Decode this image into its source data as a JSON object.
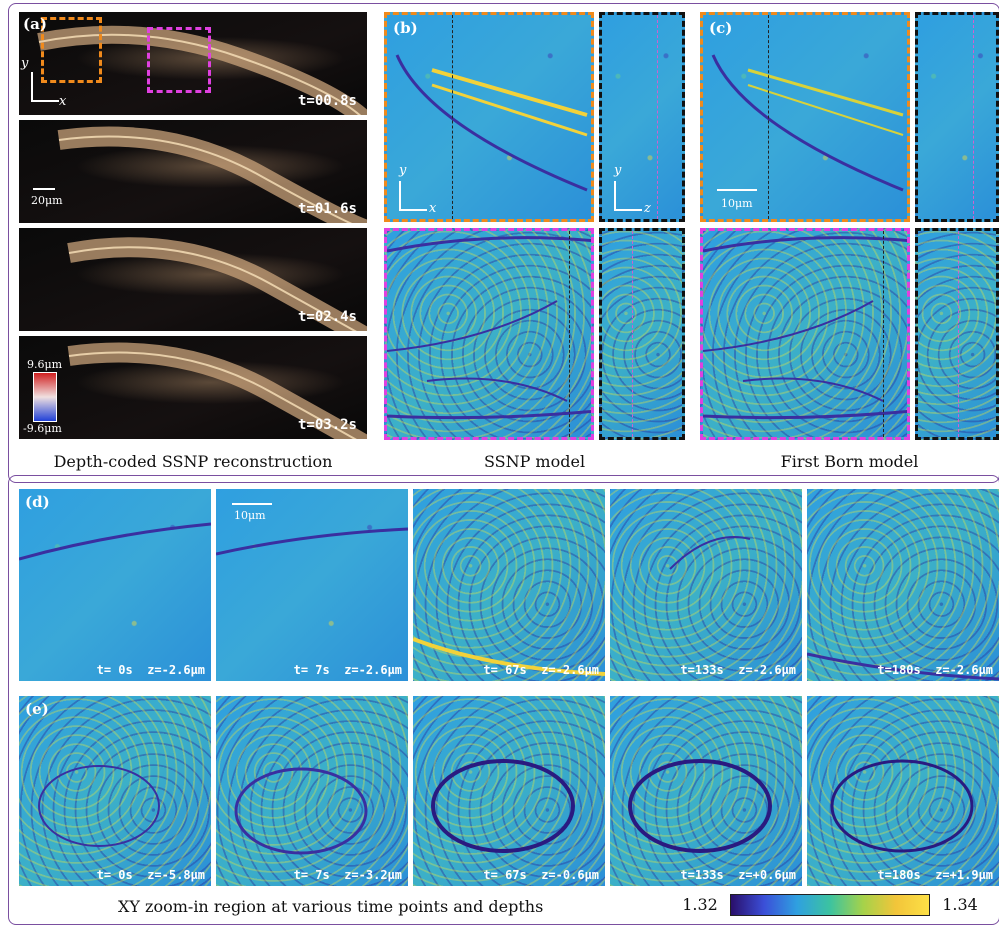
{
  "panels": {
    "a": {
      "tag": "(a)",
      "times": [
        "t=00.8s",
        "t=01.6s",
        "t=02.4s",
        "t=03.2s"
      ],
      "scale": "20μm",
      "depth_max": "9.6μm",
      "depth_min": "-9.6μm",
      "axis_x": "x",
      "axis_y": "y",
      "caption": "Depth-coded SSNP reconstruction"
    },
    "b": {
      "tag": "(b)",
      "axis_x": "x",
      "axis_y": "y",
      "axis_z": "z",
      "caption": "SSNP model"
    },
    "c": {
      "tag": "(c)",
      "scale": "10μm",
      "caption": "First Born model"
    },
    "d": {
      "tag": "(d)",
      "scale": "10μm",
      "labels": [
        "t= 0s  z=-2.6μm",
        "t= 7s  z=-2.6μm",
        "t= 67s  z=-2.6μm",
        "t=133s  z=-2.6μm",
        "t=180s  z=-2.6μm"
      ]
    },
    "e": {
      "tag": "(e)",
      "labels": [
        "t= 0s  z=-5.8μm",
        "t= 7s  z=-3.2μm",
        "t= 67s  z=-0.6μm",
        "t=133s  z=+0.6μm",
        "t=180s  z=+1.9μm"
      ]
    }
  },
  "bottom_caption": "XY zoom-in region at various time points and depths",
  "colorbar": {
    "min": "1.32",
    "max": "1.34",
    "colors": [
      "#2a0f6b",
      "#3b4fd8",
      "#2fa0e0",
      "#3cc3a0",
      "#a5d24a",
      "#f2c53a",
      "#fde046"
    ]
  }
}
